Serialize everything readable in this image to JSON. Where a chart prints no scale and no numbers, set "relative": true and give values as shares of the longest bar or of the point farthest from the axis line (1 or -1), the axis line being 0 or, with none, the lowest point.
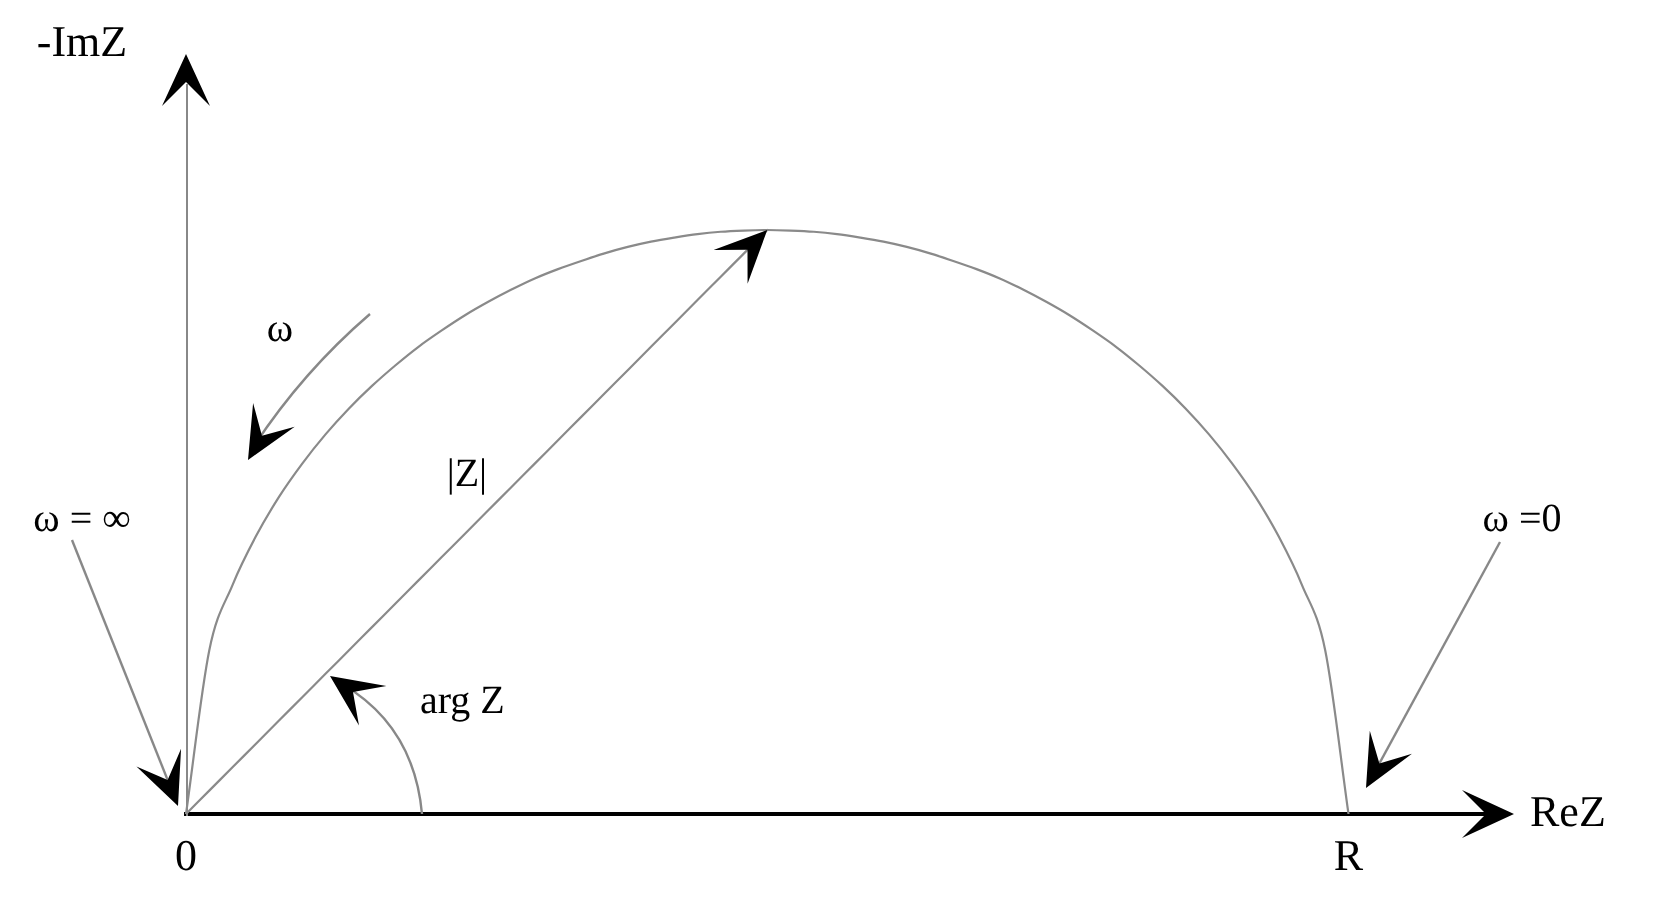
{
  "chart_data": {
    "type": "line",
    "xlabel": "ReZ",
    "ylabel": "-ImZ",
    "relative": true,
    "categories": [
      "0",
      null,
      null,
      null,
      null,
      null,
      null,
      null,
      null,
      null,
      null,
      null,
      null,
      null,
      null,
      null,
      null,
      null,
      null,
      null,
      null,
      null,
      null,
      null,
      null,
      null,
      null,
      null,
      null,
      null,
      null,
      null,
      null,
      null,
      null,
      null,
      null,
      null,
      null,
      null,
      null,
      null,
      null,
      null,
      null,
      null,
      null,
      null,
      null,
      null,
      "R",
      null,
      null,
      null,
      null,
      null,
      null
    ],
    "series": [
      {
        "color": "#8a8a8a",
        "values": [
          0,
          0.28,
          0.392,
          0.475,
          0.543,
          0.6,
          0.65,
          0.694,
          0.733,
          0.768,
          0.8,
          0.828,
          0.854,
          0.877,
          0.898,
          0.917,
          0.933,
          0.947,
          0.96,
          0.971,
          0.98,
          0.987,
          0.993,
          0.997,
          0.999,
          1,
          0.999,
          0.997,
          0.993,
          0.987,
          0.98,
          0.971,
          0.96,
          0.947,
          0.933,
          0.917,
          0.898,
          0.877,
          0.854,
          0.828,
          0.8,
          0.768,
          0.733,
          0.694,
          0.65,
          0.6,
          0.543,
          0.475,
          0.392,
          0.28,
          0,
          null,
          null,
          null,
          null,
          null,
          null
        ]
      },
      {
        "name": "|Z|",
        "color": "#8a8a8a",
        "values": [
          0,
          0.04,
          0.08,
          0.12,
          0.16,
          0.2,
          0.24,
          0.28,
          0.32,
          0.36,
          0.4,
          0.44,
          0.48,
          0.52,
          0.56,
          0.6,
          0.64,
          0.68,
          0.72,
          0.76,
          0.8,
          0.84,
          0.88,
          0.92,
          0.96,
          1,
          null,
          null,
          null,
          null,
          null,
          null,
          null,
          null,
          null,
          null,
          null,
          null,
          null,
          null,
          null,
          null,
          null,
          null,
          null,
          null,
          null,
          null,
          null,
          null,
          null,
          null,
          null,
          null,
          null,
          null,
          null
        ]
      }
    ],
    "annotations": [
      "ω",
      "ω = ∞",
      "ω =0",
      "arg Z"
    ],
    "legend": false,
    "marker": "none",
    "line_style": "solid",
    "tick_labels": "x"
  }
}
